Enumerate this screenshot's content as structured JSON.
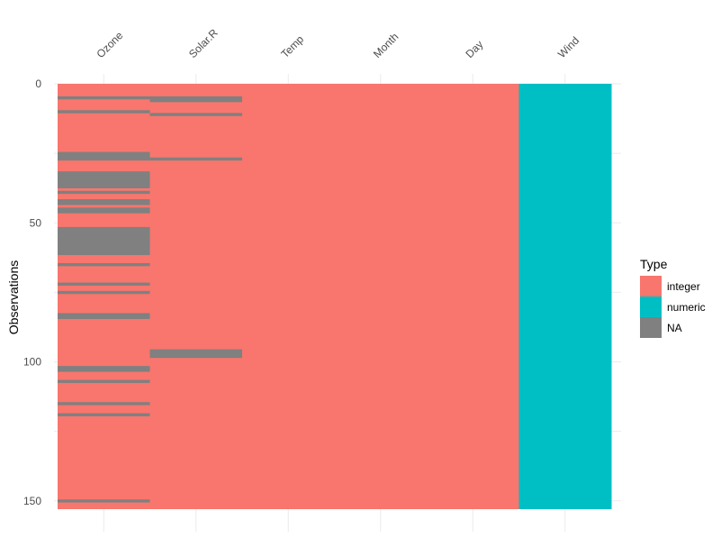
{
  "chart_data": {
    "type": "heatmap",
    "title": "",
    "xlabel": "",
    "ylabel": "Observations",
    "columns": [
      {
        "name": "Ozone",
        "type": "integer"
      },
      {
        "name": "Solar.R",
        "type": "integer"
      },
      {
        "name": "Temp",
        "type": "integer"
      },
      {
        "name": "Month",
        "type": "integer"
      },
      {
        "name": "Day",
        "type": "integer"
      },
      {
        "name": "Wind",
        "type": "numeric"
      }
    ],
    "n_observations": 153,
    "y_ticks": [
      0,
      50,
      100,
      150
    ],
    "y_range": [
      0,
      153
    ],
    "grid": true,
    "missing": {
      "Ozone": [
        5,
        10,
        25,
        26,
        27,
        32,
        33,
        34,
        35,
        36,
        37,
        39,
        42,
        43,
        45,
        46,
        52,
        53,
        54,
        55,
        56,
        57,
        58,
        59,
        60,
        61,
        65,
        72,
        75,
        83,
        84,
        102,
        103,
        107,
        115,
        119,
        150
      ],
      "Solar.R": [
        5,
        6,
        11,
        27,
        96,
        97,
        98
      ]
    },
    "legend": {
      "title": "Type",
      "position": "right",
      "entries": [
        {
          "label": "integer",
          "color": "#F8766D"
        },
        {
          "label": "numeric",
          "color": "#00BFC4"
        },
        {
          "label": "NA",
          "color": "#808080"
        }
      ]
    }
  }
}
